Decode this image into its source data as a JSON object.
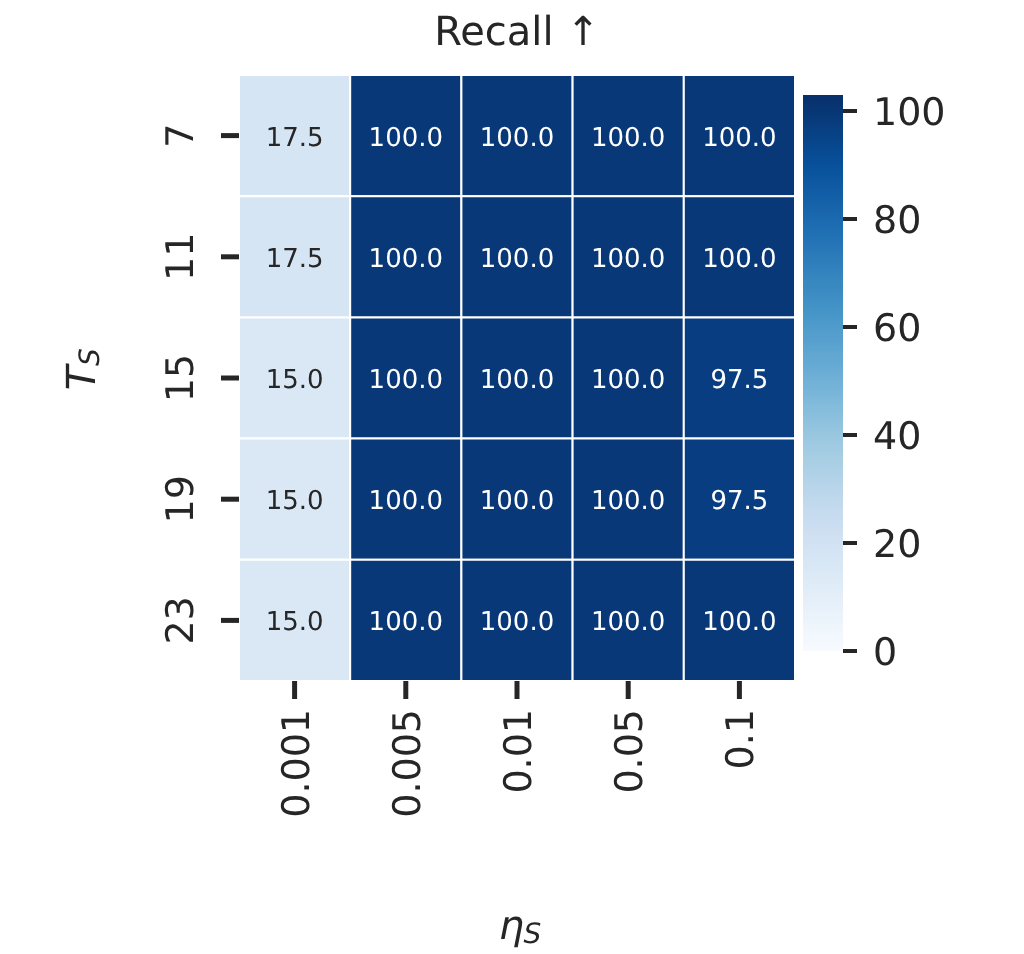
{
  "chart_data": {
    "type": "heatmap",
    "title": "Recall ↑",
    "xlabel": "η$_{S}$",
    "ylabel": "T$_{S}$",
    "categories": [
      "0.001",
      "0.005",
      "0.01",
      "0.05",
      "0.1"
    ],
    "y_categories": [
      "7",
      "11",
      "15",
      "19",
      "23"
    ],
    "cells": [
      [
        17.5,
        100.0,
        100.0,
        100.0,
        100.0
      ],
      [
        17.5,
        100.0,
        100.0,
        100.0,
        100.0
      ],
      [
        15.0,
        100.0,
        100.0,
        100.0,
        97.5
      ],
      [
        15.0,
        100.0,
        100.0,
        100.0,
        97.5
      ],
      [
        15.0,
        100.0,
        100.0,
        100.0,
        100.0
      ]
    ],
    "cell_labels": [
      [
        "17.5",
        "100.0",
        "100.0",
        "100.0",
        "100.0"
      ],
      [
        "17.5",
        "100.0",
        "100.0",
        "100.0",
        "100.0"
      ],
      [
        "15.0",
        "100.0",
        "100.0",
        "100.0",
        "97.5"
      ],
      [
        "15.0",
        "100.0",
        "100.0",
        "100.0",
        "97.5"
      ],
      [
        "15.0",
        "100.0",
        "100.0",
        "100.0",
        "100.0"
      ]
    ],
    "clim": [
      0,
      103
    ],
    "cticks": [
      0,
      20,
      40,
      60,
      80,
      100
    ]
  }
}
